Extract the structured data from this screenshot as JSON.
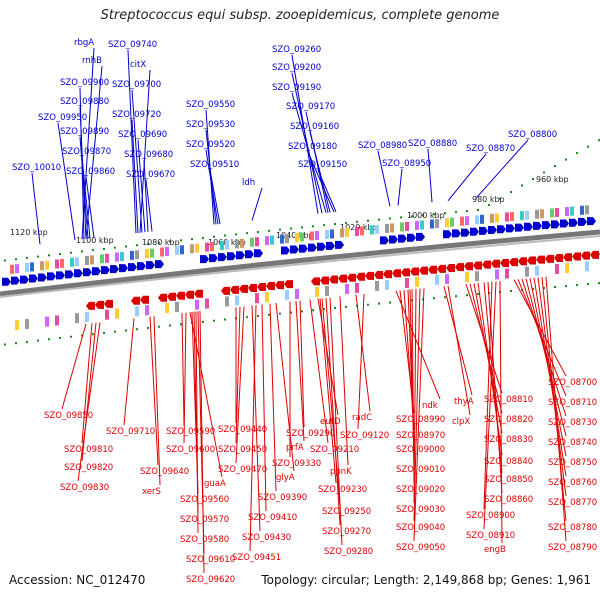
{
  "title": "Streptococcus equi subsp. zooepidemicus, complete genome",
  "footer": {
    "accession": "Accession: NC_012470",
    "summary": "Topology: circular; Length: 2,149,868 bp; Genes: 1,961"
  },
  "colors": {
    "forward": "#0000cc",
    "reverse": "#dd0000",
    "ruler": "#1a8a1a",
    "backbone": "#777777"
  },
  "scale_labels": [
    "1120 kbp",
    "1100 kbp",
    "1080 kbp",
    "1060 kbp",
    "1040 kbp",
    "1020 kbp",
    "1000 kbp",
    "980 kbp",
    "960 kbp"
  ],
  "forward_labels": [
    "rbgA",
    "rnhB",
    "SZO_09900",
    "SZO_09880",
    "SZO_09950",
    "SZO_09890",
    "SZO_09870",
    "SZO_09860",
    "SZO_10010",
    "SZO_09740",
    "citX",
    "SZO_09700",
    "SZO_09720",
    "SZO_09690",
    "SZO_09680",
    "SZO_09670",
    "SZO_09550",
    "SZO_09530",
    "SZO_09520",
    "SZO_09510",
    "ldh",
    "SZO_09260",
    "SZO_09200",
    "SZO_09190",
    "SZO_09170",
    "SZO_09160",
    "SZO_09180",
    "SZO_09150",
    "SZO_08980",
    "SZO_08950",
    "SZO_08880",
    "SZO_08870",
    "SZO_08800"
  ],
  "reverse_labels": [
    "SZO_09850",
    "SZO_09810",
    "SZO_09820",
    "SZO_09830",
    "SZO_09710",
    "SZO_09640",
    "xerS",
    "SZO_09590",
    "SZO_09600",
    "guaA",
    "SZO_09560",
    "SZO_09570",
    "SZO_09580",
    "SZO_09610",
    "SZO_09620",
    "SZO_09440",
    "SZO_09450",
    "SZO_09470",
    "SZO_09430",
    "SZO_09451",
    "SZO_09410",
    "SZO_09390",
    "glyA",
    "SZO_09330",
    "prfA",
    "SZO_09290",
    "SZO_09210",
    "eutD",
    "SZO_09230",
    "SZO_09250",
    "SZO_09270",
    "SZO_09280",
    "ppnK",
    "radC",
    "SZO_09120",
    "ndk",
    "SZO_08990",
    "SZO_08970",
    "SZO_09000",
    "SZO_09010",
    "SZO_09020",
    "SZO_09030",
    "SZO_09040",
    "SZO_09050",
    "thyA",
    "clpX",
    "SZO_08810",
    "SZO_08820",
    "SZO_08830",
    "SZO_08840",
    "SZO_08850",
    "SZO_08860",
    "SZO_08900",
    "SZO_08910",
    "engB",
    "SZO_08700",
    "SZO_08710",
    "SZO_08730",
    "SZO_08740",
    "SZO_08750",
    "SZO_08760",
    "SZO_08770",
    "SZO_08780",
    "SZO_08790"
  ]
}
